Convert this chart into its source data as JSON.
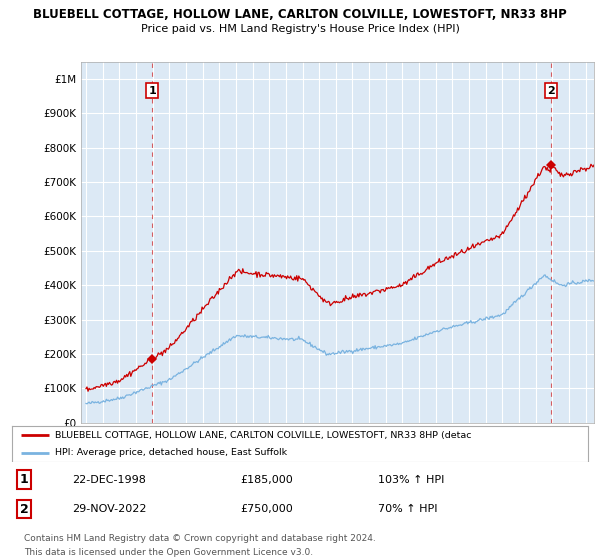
{
  "title_line1": "BLUEBELL COTTAGE, HOLLOW LANE, CARLTON COLVILLE, LOWESTOFT, NR33 8HP",
  "title_line2": "Price paid vs. HM Land Registry's House Price Index (HPI)",
  "ylabel_ticks": [
    "£0",
    "£100K",
    "£200K",
    "£300K",
    "£400K",
    "£500K",
    "£600K",
    "£700K",
    "£800K",
    "£900K",
    "£1M"
  ],
  "ytick_values": [
    0,
    100000,
    200000,
    300000,
    400000,
    500000,
    600000,
    700000,
    800000,
    900000,
    1000000
  ],
  "ylim": [
    0,
    1050000
  ],
  "xlim_start": 1994.7,
  "xlim_end": 2025.5,
  "purchase1": {
    "year": 1998.97,
    "price": 185000,
    "label": "1",
    "date": "22-DEC-1998",
    "pct": "103% ↑ HPI"
  },
  "purchase2": {
    "year": 2022.91,
    "price": 750000,
    "label": "2",
    "date": "29-NOV-2022",
    "pct": "70% ↑ HPI"
  },
  "hpi_color": "#7ab3e0",
  "price_color": "#cc0000",
  "dashed_line_color": "#cc0000",
  "plot_bg_color": "#dce9f5",
  "legend_label_price": "BLUEBELL COTTAGE, HOLLOW LANE, CARLTON COLVILLE, LOWESTOFT, NR33 8HP (detac",
  "legend_label_hpi": "HPI: Average price, detached house, East Suffolk",
  "footer_line1": "Contains HM Land Registry data © Crown copyright and database right 2024.",
  "footer_line2": "This data is licensed under the Open Government Licence v3.0.",
  "background_color": "#ffffff",
  "grid_color": "#ffffff"
}
